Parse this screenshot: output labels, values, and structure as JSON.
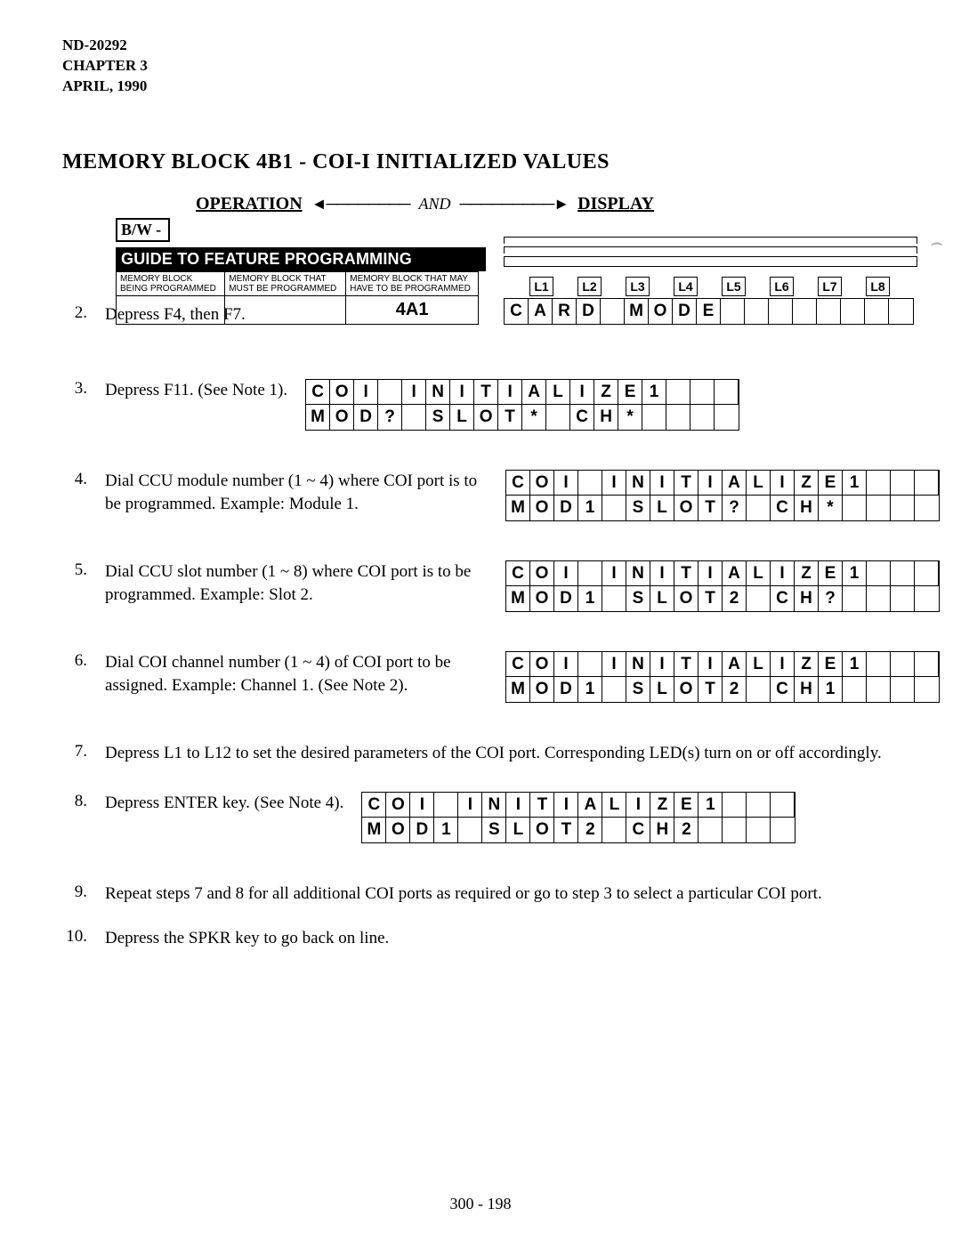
{
  "header": {
    "line1": "ND-20292",
    "line2": "CHAPTER 3",
    "line3": "APRIL, 1990"
  },
  "title": "MEMORY BLOCK 4B1 - COI-I INITIALIZED VALUES",
  "opdisp": {
    "operation": "OPERATION",
    "and": "AND",
    "display": "DISPLAY"
  },
  "bw": "B/W -",
  "guide": {
    "band": "GUIDE TO FEATURE PROGRAMMING",
    "h1": "MEMORY BLOCK BEING PROGRAMMED",
    "h2": "MEMORY BLOCK THAT MUST BE PROGRAMMED",
    "h3": "MEMORY BLOCK THAT MAY HAVE TO BE PROGRAMMED",
    "cell": "4A1"
  },
  "l_labels": [
    "L1",
    "L2",
    "L3",
    "L4",
    "L5",
    "L6",
    "L7",
    "L8"
  ],
  "step2": {
    "num": "2.",
    "text": "Depress F4, then F7.",
    "card": [
      "C",
      "A",
      "R",
      "D",
      "",
      "M",
      "O",
      "D",
      "E",
      "",
      "",
      "",
      "",
      "",
      "",
      "",
      ""
    ]
  },
  "step3": {
    "num": "3.",
    "text": "Depress F11. (See Note 1).",
    "r1": [
      "C",
      "O",
      "I",
      "",
      "I",
      "N",
      "I",
      "T",
      "I",
      "A",
      "L",
      "I",
      "Z",
      "E",
      "1",
      "",
      "",
      ""
    ],
    "r2": [
      "M",
      "O",
      "D",
      "?",
      "",
      "S",
      "L",
      "O",
      "T",
      "*",
      "",
      "C",
      "H",
      "*",
      "",
      "",
      "",
      ""
    ]
  },
  "step4": {
    "num": "4.",
    "text": "Dial CCU module number (1 ~ 4) where COI port is to be programmed. Example: Module 1.",
    "r1": [
      "C",
      "O",
      "I",
      "",
      "I",
      "N",
      "I",
      "T",
      "I",
      "A",
      "L",
      "I",
      "Z",
      "E",
      "1",
      "",
      "",
      ""
    ],
    "r2": [
      "M",
      "O",
      "D",
      "1",
      "",
      "S",
      "L",
      "O",
      "T",
      "?",
      "",
      "C",
      "H",
      "*",
      "",
      "",
      "",
      ""
    ]
  },
  "step5": {
    "num": "5.",
    "text": "Dial CCU slot number (1 ~ 8) where COI port is to be programmed. Example: Slot 2.",
    "r1": [
      "C",
      "O",
      "I",
      "",
      "I",
      "N",
      "I",
      "T",
      "I",
      "A",
      "L",
      "I",
      "Z",
      "E",
      "1",
      "",
      "",
      ""
    ],
    "r2": [
      "M",
      "O",
      "D",
      "1",
      "",
      "S",
      "L",
      "O",
      "T",
      "2",
      "",
      "C",
      "H",
      "?",
      "",
      "",
      "",
      ""
    ]
  },
  "step6": {
    "num": "6.",
    "text": "Dial COI channel number (1 ~ 4) of COI port to be assigned. Example: Channel 1. (See Note 2).",
    "r1": [
      "C",
      "O",
      "I",
      "",
      "I",
      "N",
      "I",
      "T",
      "I",
      "A",
      "L",
      "I",
      "Z",
      "E",
      "1",
      "",
      "",
      ""
    ],
    "r2": [
      "M",
      "O",
      "D",
      "1",
      "",
      "S",
      "L",
      "O",
      "T",
      "2",
      "",
      "C",
      "H",
      "1",
      "",
      "",
      "",
      ""
    ]
  },
  "step7": {
    "num": "7.",
    "text": "Depress L1 to L12 to set the desired parameters of the COI port. Corresponding LED(s) turn on or off accordingly."
  },
  "step8": {
    "num": "8.",
    "text": "Depress ENTER key. (See Note 4).",
    "r1": [
      "C",
      "O",
      "I",
      "",
      "I",
      "N",
      "I",
      "T",
      "I",
      "A",
      "L",
      "I",
      "Z",
      "E",
      "1",
      "",
      "",
      ""
    ],
    "r2": [
      "M",
      "O",
      "D",
      "1",
      "",
      "S",
      "L",
      "O",
      "T",
      "2",
      "",
      "C",
      "H",
      "2",
      "",
      "",
      "",
      ""
    ]
  },
  "step9": {
    "num": "9.",
    "text": "Repeat steps 7 and 8 for all additional COI ports as required or go to step 3 to select a particular COI port."
  },
  "step10": {
    "num": "10.",
    "text": "Depress the SPKR key to go back on line."
  },
  "footer": "300 - 198"
}
